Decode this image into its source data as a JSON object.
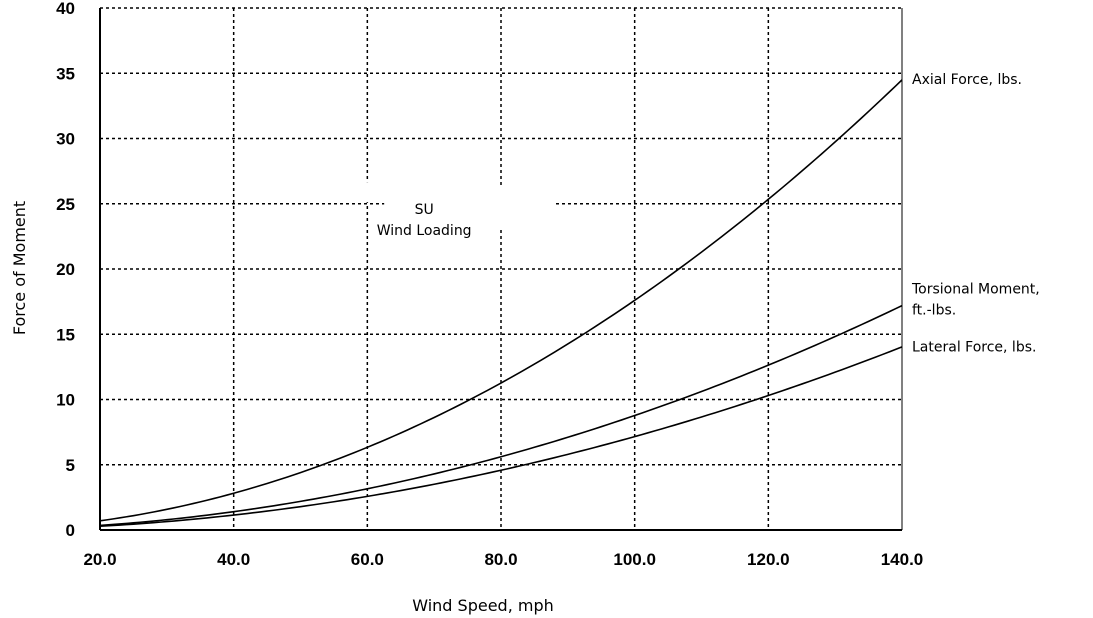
{
  "chart_data": {
    "type": "line",
    "title": "",
    "xlabel": "Wind Speed, mph",
    "ylabel": "Force of Moment",
    "xlim": [
      20,
      140
    ],
    "ylim": [
      0,
      40
    ],
    "x_ticks": [
      "20.0",
      "40.0",
      "60.0",
      "80.0",
      "100.0",
      "120.0",
      "140.0"
    ],
    "y_ticks": [
      "0",
      "5",
      "10",
      "15",
      "20",
      "25",
      "30",
      "35",
      "40"
    ],
    "grid": true,
    "annotation": [
      "SU",
      "Wind Loading"
    ],
    "x": [
      20,
      40,
      60,
      80,
      100,
      120,
      140
    ],
    "series": [
      {
        "name": "Axial Force, lbs.",
        "values": [
          0.7,
          2.8,
          6.4,
          11.3,
          17.6,
          25.3,
          34.5
        ]
      },
      {
        "name": "Torsional Moment, ft.-lbs.",
        "values": [
          0.35,
          1.4,
          3.2,
          5.6,
          8.8,
          12.6,
          17.2
        ]
      },
      {
        "name": "Lateral Force, lbs.",
        "values": [
          0.3,
          1.15,
          2.6,
          4.6,
          7.2,
          10.3,
          14.0
        ]
      }
    ],
    "series_labels": [
      [
        "Axial Force, lbs."
      ],
      [
        "Torsional Moment,",
        "ft.-lbs."
      ],
      [
        "Lateral Force, lbs."
      ]
    ]
  }
}
